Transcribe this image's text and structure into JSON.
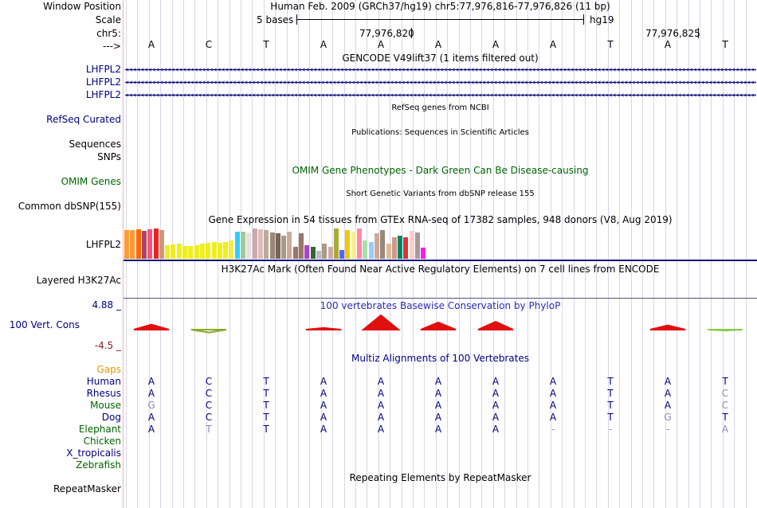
{
  "labels": {
    "window_position": "Window Position",
    "scale": "Scale",
    "chrom": "chr5:",
    "arrow": "--->",
    "gencode_genes": [
      "LHFPL2",
      "LHFPL2",
      "LHFPL2"
    ],
    "refseq": "RefSeq Curated",
    "sequences": "Sequences",
    "snps": "SNPs",
    "omim": "OMIM Genes",
    "common_dbsnp": "Common dbSNP(155)",
    "gtex_gene": "LHFPL2",
    "layered": "Layered H3K27Ac",
    "cons_max": "4.88 _",
    "cons_label": "100 Vert. Cons",
    "cons_min": "-4.5 _",
    "gaps": "Gaps",
    "species": [
      "Human",
      "Rhesus",
      "Mouse",
      "Dog",
      "Elephant",
      "Chicken",
      "X_tropicalis",
      "Zebrafish"
    ],
    "repeatmasker": "RepeatMasker"
  },
  "ruler": {
    "position_text": "Human Feb. 2009 (GRCh37/hg19)   chr5:77,976,816-77,976,826 (11 bp)",
    "scale_text": "5 bases",
    "assembly": "hg19",
    "coord1": "77,976,820",
    "coord2": "77,976,825",
    "bases": [
      "A",
      "C",
      "T",
      "A",
      "A",
      "A",
      "A",
      "A",
      "T",
      "A",
      "T"
    ]
  },
  "tracks": {
    "gencode": "GENCODE V49lift37 (1 items filtered out)",
    "gene_arrows": "<<<<<<<<<<<<<<<<<<<<<<<<<<<<<<<<<<<<<<<<<<<<<<<<<<<<<<<<<<<<<<<<<<<<<<<<<<<<<<<<<<<<<<<<<<<<<<<<<<<<<<<<<<<<<<<<<<<<<<<<<<<<<<<<<<<<<<<<<<<<<<<<<<<<<<<<<<<<<<<<<<<<<<",
    "refseq": "RefSeq genes from NCBI",
    "publications": "Publications: Sequences in Scientific Articles",
    "omim": "OMIM Gene Phenotypes - Dark Green Can Be Disease-causing",
    "dbsnp": "Short Genetic Variants from dbSNP release 155",
    "gtex": "Gene Expression in 54 tissues from GTEx RNA-seq of 17382 samples, 948 donors (V8, Aug 2019)",
    "h3k27ac": "H3K27Ac Mark (Often Found Near Active Regulatory Elements) on 7 cell lines from ENCODE",
    "phylop": "100 vertebrates Basewise Conservation by PhyloP",
    "multiz": "Multiz Alignments of 100 Vertebrates",
    "repeatmasker": "Repeating Elements by RepeatMasker"
  },
  "gtex_bars": [
    {
      "color": "#ff9933",
      "value": 0.95
    },
    {
      "color": "#ff9933",
      "value": 0.95
    },
    {
      "color": "#ff6600",
      "value": 0.97
    },
    {
      "color": "#aa4466",
      "value": 0.92
    },
    {
      "color": "#ee5577",
      "value": 0.97
    },
    {
      "color": "#ee2222",
      "value": 1.0
    },
    {
      "color": "#cc9977",
      "value": 0.95
    },
    {
      "color": "#eeee22",
      "value": 0.45
    },
    {
      "color": "#eeee22",
      "value": 0.48
    },
    {
      "color": "#eeee22",
      "value": 0.5
    },
    {
      "color": "#eeee22",
      "value": 0.42
    },
    {
      "color": "#eeee22",
      "value": 0.42
    },
    {
      "color": "#eeee22",
      "value": 0.45
    },
    {
      "color": "#eeee22",
      "value": 0.5
    },
    {
      "color": "#eeee22",
      "value": 0.52
    },
    {
      "color": "#eeee22",
      "value": 0.55
    },
    {
      "color": "#eeee22",
      "value": 0.52
    },
    {
      "color": "#eeee22",
      "value": 0.55
    },
    {
      "color": "#eeee44",
      "value": 0.6
    },
    {
      "color": "#33ccff",
      "value": 0.9
    },
    {
      "color": "#99cc99",
      "value": 0.9
    },
    {
      "color": "#eedddd",
      "value": 0.88
    },
    {
      "color": "#ccaaaa",
      "value": 1.0
    },
    {
      "color": "#ddbbbb",
      "value": 0.97
    },
    {
      "color": "#bbaa99",
      "value": 0.95
    },
    {
      "color": "#998877",
      "value": 0.88
    },
    {
      "color": "#776655",
      "value": 0.85
    },
    {
      "color": "#aa9988",
      "value": 0.75
    },
    {
      "color": "#ccaa99",
      "value": 0.9
    },
    {
      "color": "#997766",
      "value": 0.4
    },
    {
      "color": "#997766",
      "value": 0.85
    },
    {
      "color": "#aa44cc",
      "value": 0.45
    },
    {
      "color": "#336633",
      "value": 0.4
    },
    {
      "color": "#bbbbbb",
      "value": 0.25
    },
    {
      "color": "#aa9988",
      "value": 0.5
    },
    {
      "color": "#ccaaaa",
      "value": 0.4
    },
    {
      "color": "#aaaa33",
      "value": 1.0
    },
    {
      "color": "#5566ff",
      "value": 0.28
    },
    {
      "color": "#eecc00",
      "value": 0.95
    },
    {
      "color": "#ffee88",
      "value": 0.9
    },
    {
      "color": "#ff88aa",
      "value": 1.0
    },
    {
      "color": "#aaddaa",
      "value": 0.6
    },
    {
      "color": "#99ccff",
      "value": 0.55
    },
    {
      "color": "#ccaa99",
      "value": 0.85
    },
    {
      "color": "#998877",
      "value": 0.95
    },
    {
      "color": "#ddbb99",
      "value": 0.5
    },
    {
      "color": "#cc9988",
      "value": 0.7
    },
    {
      "color": "#008866",
      "value": 0.75
    },
    {
      "color": "#dd3333",
      "value": 0.72
    },
    {
      "color": "#ffcccc",
      "value": 0.92
    },
    {
      "color": "#aa9999",
      "value": 0.88
    },
    {
      "color": "#ee22ee",
      "value": 0.38
    }
  ],
  "phylop_peaks": [
    {
      "col": 0,
      "height": 0.35,
      "color": "#e01010"
    },
    {
      "col": 1,
      "height": -0.2,
      "color": "#88aa22"
    },
    {
      "col": 3,
      "height": 0.12,
      "color": "#e01010"
    },
    {
      "col": 4,
      "height": 1.0,
      "color": "#e01010"
    },
    {
      "col": 5,
      "height": 0.5,
      "color": "#e01010"
    },
    {
      "col": 6,
      "height": 0.55,
      "color": "#e01010"
    },
    {
      "col": 9,
      "height": 0.3,
      "color": "#e01010"
    },
    {
      "col": 10,
      "height": -0.06,
      "color": "#88cc44"
    }
  ],
  "alignment": [
    {
      "species": "Human",
      "bases": [
        "A",
        "C",
        "T",
        "A",
        "A",
        "A",
        "A",
        "A",
        "T",
        "A",
        "T"
      ],
      "muted": []
    },
    {
      "species": "Rhesus",
      "bases": [
        "A",
        "C",
        "T",
        "A",
        "A",
        "A",
        "A",
        "A",
        "T",
        "A",
        "C"
      ],
      "muted": [
        10
      ]
    },
    {
      "species": "Mouse",
      "bases": [
        "G",
        "C",
        "T",
        "A",
        "A",
        "A",
        "A",
        "A",
        "T",
        "A",
        "C"
      ],
      "muted": [
        0,
        10
      ]
    },
    {
      "species": "Dog",
      "bases": [
        "A",
        "C",
        "T",
        "A",
        "A",
        "A",
        "A",
        "A",
        "T",
        "G",
        "T"
      ],
      "muted": [
        9
      ]
    },
    {
      "species": "Elephant",
      "bases": [
        "A",
        "T",
        "T",
        "A",
        "A",
        "A",
        "A",
        "-",
        "-",
        "-",
        "A"
      ],
      "muted": [
        1,
        7,
        8,
        9,
        10
      ]
    }
  ],
  "colors": {
    "label_blue": "#000080",
    "label_green": "#006400",
    "gaps_orange": "#e69500",
    "phylop_title": "#2b2bb8",
    "cons_min": "#8b1a1a",
    "align_base": "#000080",
    "align_muted": "#8888bb"
  }
}
